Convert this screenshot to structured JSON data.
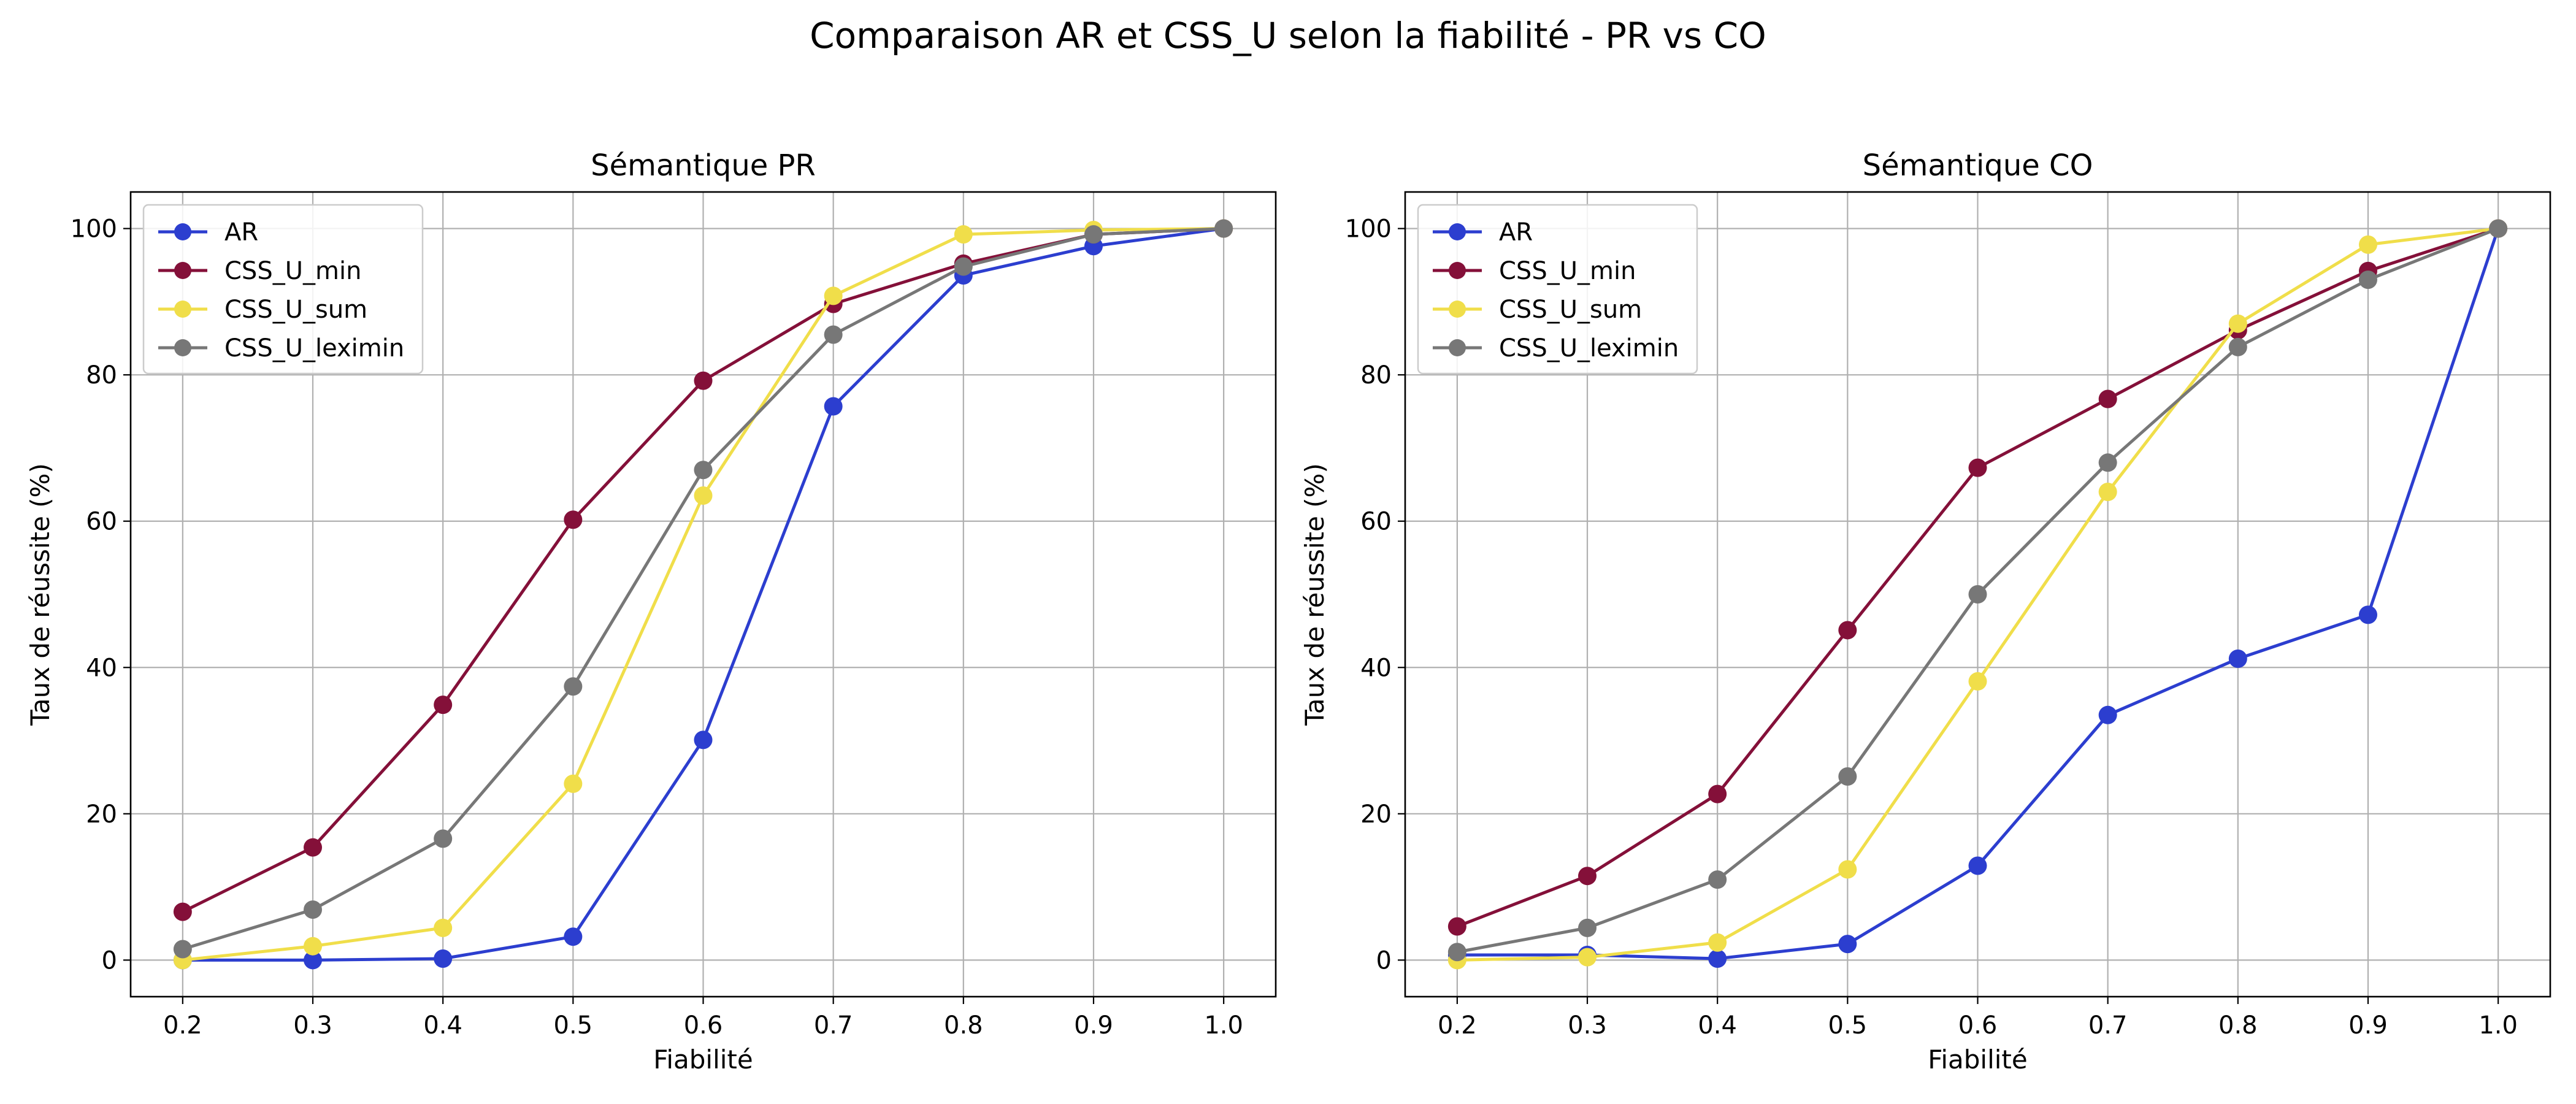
{
  "figure": {
    "title": "Comparaison AR et CSS_U selon la fiabilité - PR vs CO"
  },
  "chart_data": [
    {
      "type": "line",
      "title": "Sémantique PR",
      "xlabel": "Fiabilité",
      "ylabel": "Taux de réussite (%)",
      "x": [
        0.2,
        0.3,
        0.4,
        0.5,
        0.6,
        0.7,
        0.8,
        0.9,
        1.0
      ],
      "x_ticks": [
        "0.2",
        "0.3",
        "0.4",
        "0.5",
        "0.6",
        "0.7",
        "0.8",
        "0.9",
        "1.0"
      ],
      "y_ticks": [
        "0",
        "20",
        "40",
        "60",
        "80",
        "100"
      ],
      "xlim": [
        0.16,
        1.04
      ],
      "ylim": [
        -5,
        105
      ],
      "grid": true,
      "legend_position": "top-left",
      "series": [
        {
          "name": "AR",
          "color": "#2c3ecf",
          "values": [
            0,
            0,
            0.2,
            3.2,
            30.1,
            75.7,
            93.6,
            97.6,
            100
          ]
        },
        {
          "name": "CSS_U_min",
          "color": "#841039",
          "values": [
            6.6,
            15.4,
            34.9,
            60.2,
            79.2,
            89.7,
            95.2,
            99.2,
            100
          ]
        },
        {
          "name": "CSS_U_sum",
          "color": "#f0de4a",
          "values": [
            0,
            1.9,
            4.4,
            24.1,
            63.5,
            90.8,
            99.2,
            99.8,
            100
          ]
        },
        {
          "name": "CSS_U_leximin",
          "color": "#777777",
          "values": [
            1.5,
            6.9,
            16.6,
            37.4,
            67,
            85.5,
            94.8,
            99.2,
            100
          ]
        }
      ]
    },
    {
      "type": "line",
      "title": "Sémantique CO",
      "xlabel": "Fiabilité",
      "ylabel": "Taux de réussite (%)",
      "x": [
        0.2,
        0.3,
        0.4,
        0.5,
        0.6,
        0.7,
        0.8,
        0.9,
        1.0
      ],
      "x_ticks": [
        "0.2",
        "0.3",
        "0.4",
        "0.5",
        "0.6",
        "0.7",
        "0.8",
        "0.9",
        "1.0"
      ],
      "y_ticks": [
        "0",
        "20",
        "40",
        "60",
        "80",
        "100"
      ],
      "xlim": [
        0.16,
        1.04
      ],
      "ylim": [
        -5,
        105
      ],
      "grid": true,
      "legend_position": "top-left",
      "series": [
        {
          "name": "AR",
          "color": "#2c3ecf",
          "values": [
            0.7,
            0.7,
            0.2,
            2.2,
            12.9,
            33.5,
            41.2,
            47.2,
            100
          ]
        },
        {
          "name": "CSS_U_min",
          "color": "#841039",
          "values": [
            4.6,
            11.5,
            22.7,
            45.1,
            67.3,
            76.7,
            86.1,
            94.2,
            100
          ]
        },
        {
          "name": "CSS_U_sum",
          "color": "#f0de4a",
          "values": [
            0,
            0.4,
            2.4,
            12.4,
            38.1,
            64,
            87,
            97.8,
            100
          ]
        },
        {
          "name": "CSS_U_leximin",
          "color": "#777777",
          "values": [
            1.1,
            4.4,
            11,
            25.1,
            50,
            68,
            83.8,
            93,
            100
          ]
        }
      ]
    }
  ]
}
